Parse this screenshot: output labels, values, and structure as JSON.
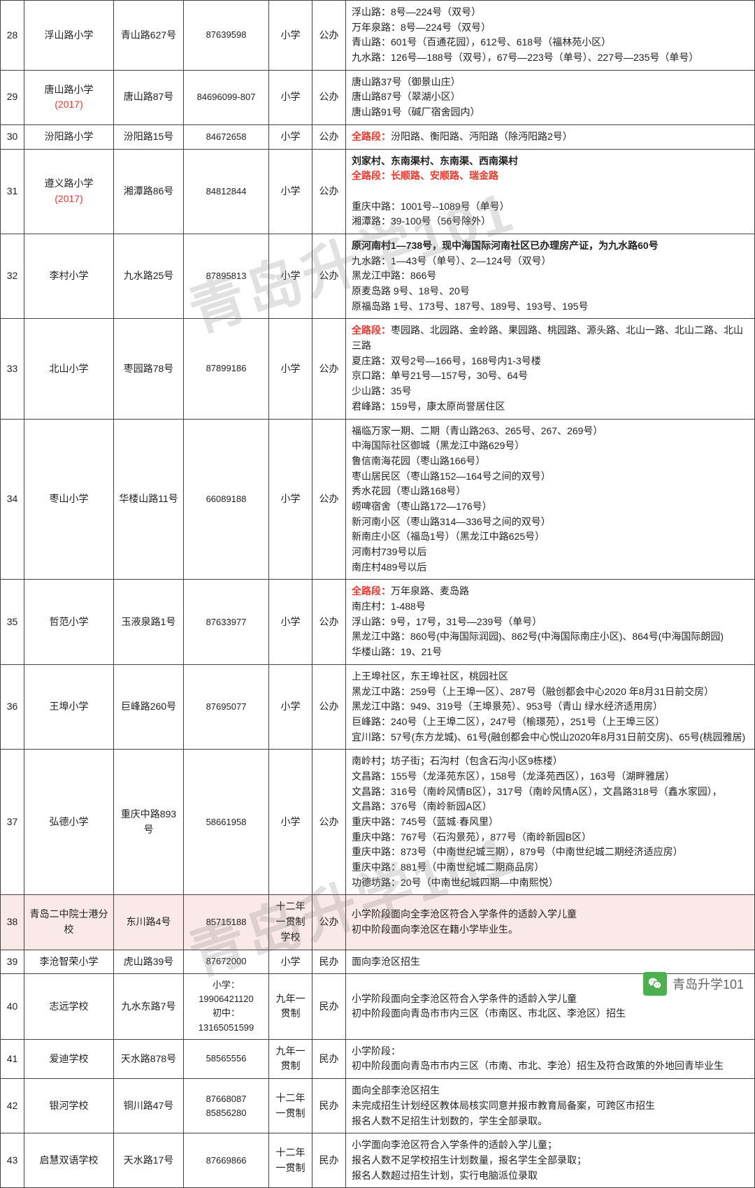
{
  "watermark_text": "青岛升学101",
  "watermark_color": "rgba(120,120,120,0.22)",
  "watermark_font_size": 80,
  "badge_text": "青岛升学101",
  "col_widths": {
    "idx": 34,
    "name": 128,
    "addr": 100,
    "tel": 122,
    "lvl": 62,
    "type": 48
  },
  "rows": [
    {
      "idx": "28",
      "name": "浮山路小学",
      "addr": "青山路627号",
      "tel": "87639598",
      "lvl": "小学",
      "type": "公办",
      "area_html": "浮山路：8号—224号（双号）<br>万年泉路：8号—224号（双号）<br>青山路：601号（百通花园），612号、618号（福林苑小区）<br>九水路：126号—188号（双号），67号—223号（单号）、227号—235号（单号）"
    },
    {
      "idx": "29",
      "name_html": "唐山路小学<br><span class=\"red\">(2017)</span>",
      "addr": "唐山路87号",
      "tel": "84696099-807",
      "lvl": "小学",
      "type": "公办",
      "area_html": "唐山路37号（御景山庄）<br>唐山路87号（翠湖小区）<br>唐山路91号（碱厂宿舍园内）"
    },
    {
      "idx": "30",
      "name": "汾阳路小学",
      "addr": "汾阳路15号",
      "tel": "84672658",
      "lvl": "小学",
      "type": "公办",
      "area_html": "<span class=\"red bold\">全路段：</span>汾阳路、衡阳路、沔阳路（除沔阳路2号）"
    },
    {
      "idx": "31",
      "name_html": "遵义路小学<br><span class=\"red\">(2017)</span>",
      "addr": "湘潭路86号",
      "tel": "84812844",
      "lvl": "小学",
      "type": "公办",
      "area_html": "<span class=\"bold\">刘家村、东南渠村、东南渠、西南渠村</span><br><span class=\"red bold\">全路段：长顺路、安顺路、瑞金路</span><br><br>重庆中路：1001号--1089号（单号）<br>湘潭路：39-100号（56号除外）"
    },
    {
      "idx": "32",
      "name": "李村小学",
      "addr": "九水路25号",
      "tel": "87895813",
      "lvl": "小学",
      "type": "公办",
      "area_html": "<span class=\"bold\">原河南村1—738号，现中海国际河南社区已办理房产证，为九水路60号</span><br>九水路：1—43号（单号）、2—124号（双号）<br>黑龙江中路：866号<br>原麦岛路 9号、18号、20号<br>原福岛路 1号、173号、187号、189号、193号、195号"
    },
    {
      "idx": "33",
      "name": "北山小学",
      "addr": "枣园路78号",
      "tel": "87899186",
      "lvl": "小学",
      "type": "公办",
      "area_html": "<span class=\"red bold\">全路段：</span>枣园路、北园路、金岭路、果园路、桃园路、源头路、北山一路、北山二路、北山三路<br>夏庄路：双号2号—166号，168号内1-3号楼<br>京口路：单号21号—157号，30号、64号<br>少山路：35号<br>君峰路：159号，康太原尚誉居住区"
    },
    {
      "idx": "34",
      "name": "枣山小学",
      "addr": "华楼山路11号",
      "tel": "66089188",
      "lvl": "小学",
      "type": "公办",
      "area_html": "福临万家一期、二期（青山路263、265号、267、269号）<br>中海国际社区御城（黑龙江中路629号）<br>鲁信南海花园（枣山路166号）<br>枣山居民区（枣山路152—164号之间的双号）<br>秀水花园（枣山路168号）<br>崂啤宿舍（枣山路172—176号）<br>新河南小区（枣山路314—336号之间的双号）<br>新南庄小区（福岛1号）（黑龙江中路625号）<br>河南村739号以后<br>南庄村489号以后"
    },
    {
      "idx": "35",
      "name": "哲范小学",
      "addr": "玉液泉路1号",
      "tel": "87633977",
      "lvl": "小学",
      "type": "公办",
      "area_html": "<span class=\"red bold\">全路段：</span>万年泉路、麦岛路<br>南庄村：1-488号<br>浮山路：9号，17号，31号—239号（单号）<br>黑龙江中路：860号(中海国际润园)、862号(中海国际南庄小区)、864号(中海国际朗园)<br>华楼山路：19、21号"
    },
    {
      "idx": "36",
      "name": "王埠小学",
      "addr": "巨峰路260号",
      "tel": "87695077",
      "lvl": "小学",
      "type": "公办",
      "area_html": "上王埠社区，东王埠社区，桃园社区<br>黑龙江中路：259号（上王埠一区）、287号（融创都会中心2020 年8月31日前交房）<br>黑龙江中路：949、319号（王埠景苑）、953号（青山 绿水经济适用房）<br>巨峰路：240号（上王埠二区），247号（榆璟苑），251号（上王埠三区）<br>宜川路：57号(东方龙城)、61号(融创都会中心悦山2020年8月31日前交房)、65号(桃园雅居)"
    },
    {
      "idx": "37",
      "name": "弘德小学",
      "addr": "重庆中路893号",
      "tel": "58661958",
      "lvl": "小学",
      "type": "公办",
      "area_html": "南岭村；坊子街；石沟村（包含石沟小区9栋楼）<br>文昌路：155号（龙泽苑东区），158号（龙泽苑西区），163号（湖畔雅居）<br>文昌路：316号（南岭风情B区），317号（南岭风情A区），文昌路318号（鑫水家园），<br>文昌路：376号（南岭新园A区）<br>重庆中路：745号（蓝城·春风里）<br>重庆中路：767号（石沟景苑），877号（南岭新园B区）<br>重庆中路：873号（中南世纪城三期），879号（中南世纪城二期经济适应房）<br>重庆中路：881号（中南世纪城二期商品房）<br>功德坊路：20号（中南世纪城四期—中南熙悦）"
    },
    {
      "idx": "38",
      "row_class": "pink-row",
      "name": "青岛二中院士港分校",
      "addr": "东川路4号",
      "tel": "85715188",
      "lvl": "十二年一贯制学校",
      "type": "公办",
      "area_html": "小学阶段面向全李沧区符合入学条件的适龄入学儿童<br>初中阶段面向李沧区在籍小学毕业生。"
    },
    {
      "idx": "39",
      "name": "李沧智荣小学",
      "addr": "虎山路39号",
      "tel": "87672000",
      "lvl": "小学",
      "type": "民办",
      "area_html": "面向李沧区招生"
    },
    {
      "idx": "40",
      "name": "志远学校",
      "addr": "九水东路7号",
      "tel_html": "小学：19906421120<br>初中：13165051599",
      "lvl": "九年一贯制",
      "type": "民办",
      "area_html": "小学阶段面向全李沧区符合入学条件的适龄入学儿童<br>初中阶段面向青岛市市内三区（市南区、市北区、李沧区）招生"
    },
    {
      "idx": "41",
      "name": "爱迪学校",
      "addr": "天水路878号",
      "tel": "58565556",
      "lvl": "九年一贯制",
      "type": "民办",
      "area_html": "小学阶段：<br>初中阶段面向青岛市市内三区（市南、市北、李沧）招生及符合政策的外地回青毕业生"
    },
    {
      "idx": "42",
      "name": "银河学校",
      "addr": "铜川路47号",
      "tel_html": "87668087<br>85856280",
      "lvl": "十二年一贯制",
      "type": "民办",
      "area_html": "面向全部李沧区招生<br>未完成招生计划经区教体局核实同意并报市教育局备案，可跨区市招生<br>报名人数不足招生计划数的，学生全部录取。"
    },
    {
      "idx": "43",
      "name": "启慧双语学校",
      "addr": "天水路17号",
      "tel": "87669866",
      "lvl": "十二年一贯制",
      "type": "民办",
      "area_html": "小学面向李沧区符合入学条件的适龄入学儿童；<br>报名人数不足学校招生计划数量，报名学生全部录取；<br>报名人数超过招生计划，实行电脑派位录取"
    }
  ]
}
